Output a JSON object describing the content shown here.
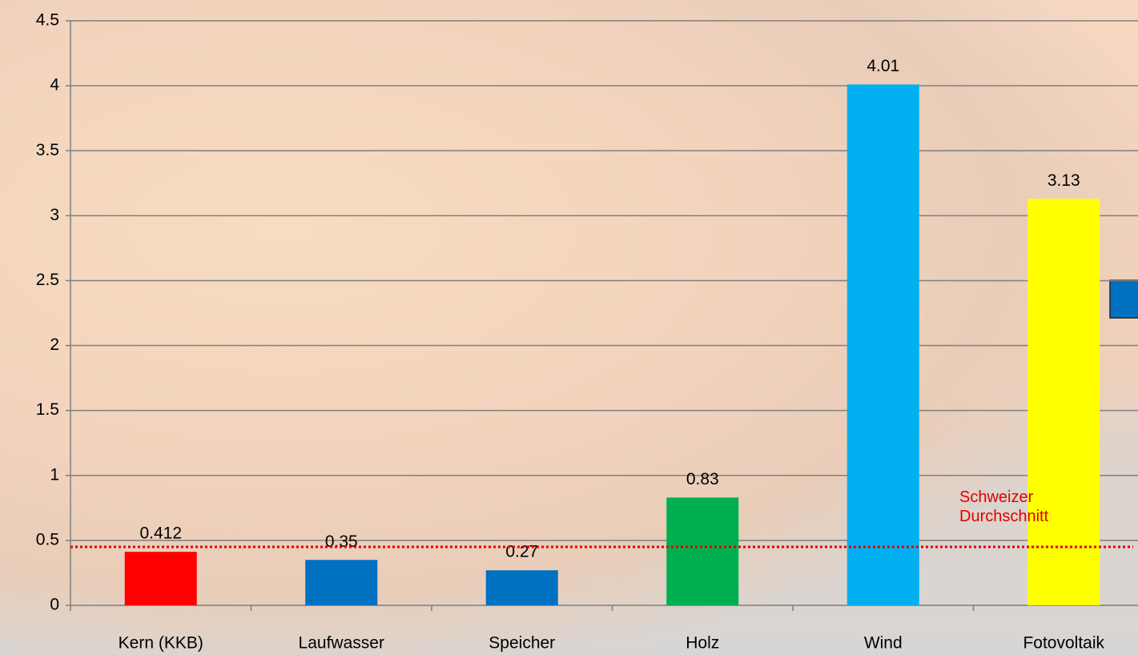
{
  "chart_data": {
    "type": "bar",
    "categories": [
      "Kern (KKB)",
      "Laufwasser",
      "Speicher",
      "Holz",
      "Wind",
      "Fotovoltaik"
    ],
    "values": [
      0.412,
      0.35,
      0.27,
      0.83,
      4.01,
      3.13
    ],
    "colors": [
      "#ff0000",
      "#0070c0",
      "#0070c0",
      "#00b050",
      "#00b0f0",
      "#ffff00"
    ],
    "ylim": [
      0,
      4.5
    ],
    "yticks": [
      0,
      0.5,
      1,
      1.5,
      2,
      2.5,
      3,
      3.5,
      4,
      4.5
    ],
    "grid": true,
    "reference_line": {
      "value": 0.45,
      "label": "Schweizer Durchschnitt",
      "color": "#e00000"
    }
  }
}
